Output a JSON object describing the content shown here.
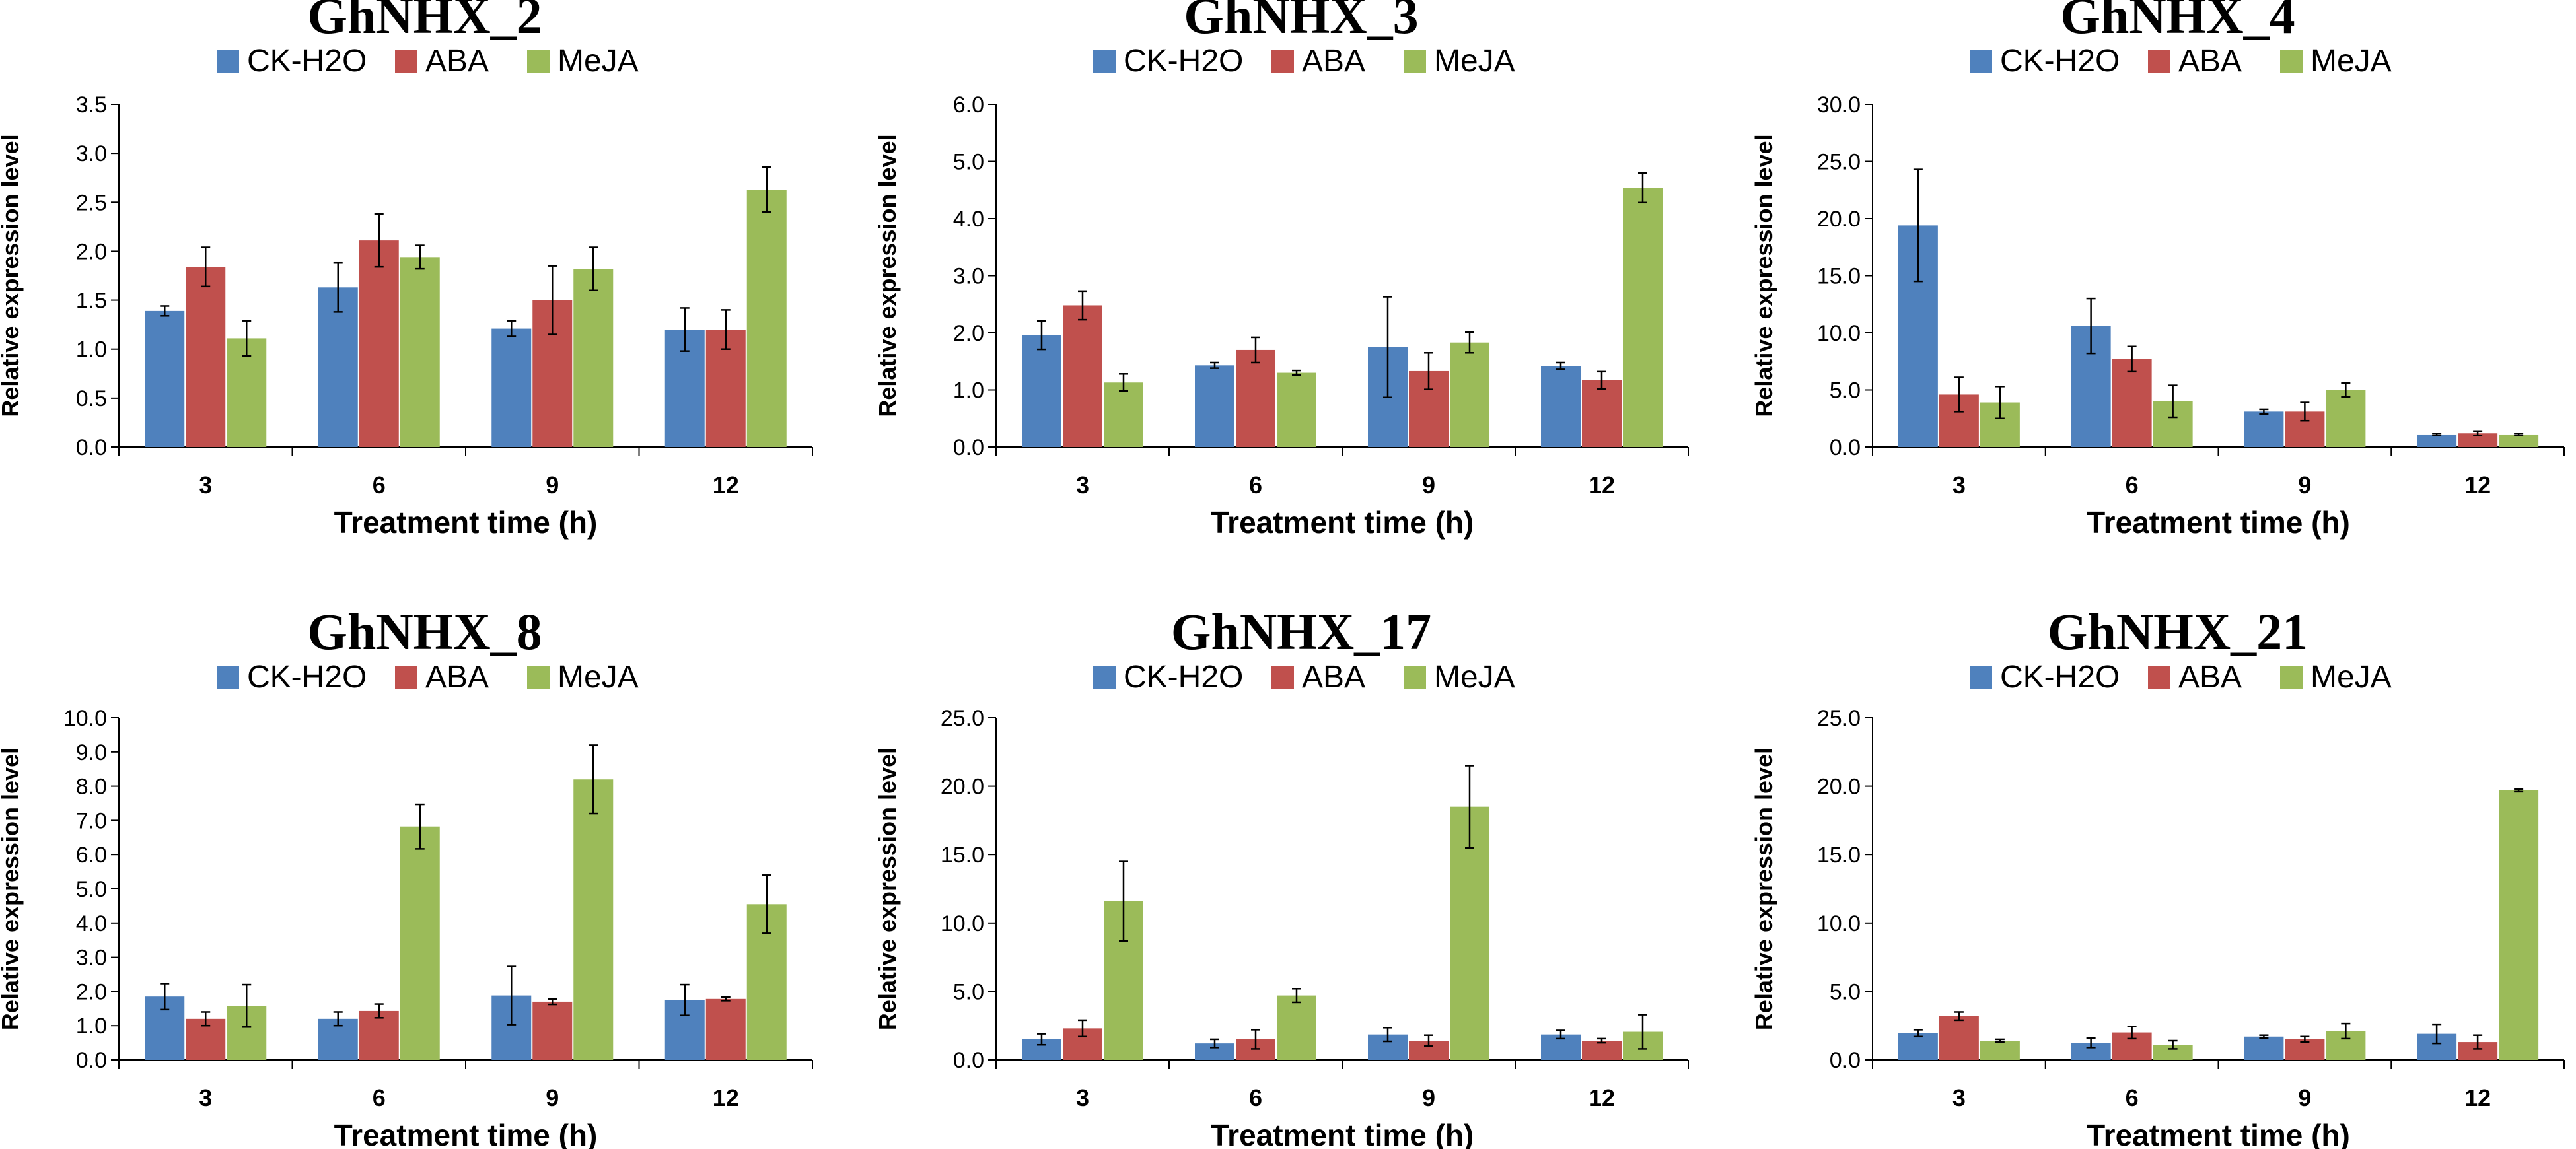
{
  "colors": {
    "CK-H2O": "#4f81bd",
    "ABA": "#c0504d",
    "MeJA": "#9bbb59"
  },
  "chart_data": [
    {
      "type": "bar",
      "title": "GhNHX_2",
      "xlabel": "Treatment time (h)",
      "ylabel": "Relative expression level",
      "categories": [
        "3",
        "6",
        "9",
        "12"
      ],
      "ylim": [
        0,
        3.5
      ],
      "ytick_step": 0.5,
      "yticks": [
        "0.0",
        "0.5",
        "1.0",
        "1.5",
        "2.0",
        "2.5",
        "3.0",
        "3.5"
      ],
      "legend": [
        "CK-H2O",
        "ABA",
        "MeJA"
      ],
      "series": [
        {
          "name": "CK-H2O",
          "values": [
            1.39,
            1.63,
            1.21,
            1.2
          ],
          "errors": [
            0.05,
            0.25,
            0.08,
            0.22
          ]
        },
        {
          "name": "ABA",
          "values": [
            1.84,
            2.11,
            1.5,
            1.2
          ],
          "errors": [
            0.2,
            0.27,
            0.35,
            0.2
          ]
        },
        {
          "name": "MeJA",
          "values": [
            1.11,
            1.94,
            1.82,
            2.63
          ],
          "errors": [
            0.18,
            0.12,
            0.22,
            0.23
          ]
        }
      ]
    },
    {
      "type": "bar",
      "title": "GhNHX_3",
      "xlabel": "Treatment time (h)",
      "ylabel": "Relative expression level",
      "categories": [
        "3",
        "6",
        "9",
        "12"
      ],
      "ylim": [
        0,
        6.0
      ],
      "ytick_step": 1.0,
      "yticks": [
        "0.0",
        "1.0",
        "2.0",
        "3.0",
        "4.0",
        "5.0",
        "6.0"
      ],
      "legend": [
        "CK-H2O",
        "ABA",
        "MeJA"
      ],
      "series": [
        {
          "name": "CK-H2O",
          "values": [
            1.96,
            1.43,
            1.75,
            1.42
          ],
          "errors": [
            0.25,
            0.05,
            0.88,
            0.06
          ]
        },
        {
          "name": "ABA",
          "values": [
            2.48,
            1.7,
            1.33,
            1.17
          ],
          "errors": [
            0.25,
            0.22,
            0.32,
            0.15
          ]
        },
        {
          "name": "MeJA",
          "values": [
            1.13,
            1.3,
            1.83,
            4.54
          ],
          "errors": [
            0.15,
            0.04,
            0.18,
            0.26
          ]
        }
      ]
    },
    {
      "type": "bar",
      "title": "GhNHX_4",
      "xlabel": "Treatment time (h)",
      "ylabel": "Relative expression level",
      "categories": [
        "3",
        "6",
        "9",
        "12"
      ],
      "ylim": [
        0,
        30.0
      ],
      "ytick_step": 5.0,
      "yticks": [
        "0.0",
        "5.0",
        "10.0",
        "15.0",
        "20.0",
        "25.0",
        "30.0"
      ],
      "legend": [
        "CK-H2O",
        "ABA",
        "MeJA"
      ],
      "series": [
        {
          "name": "CK-H2O",
          "values": [
            19.4,
            10.6,
            3.1,
            1.1
          ],
          "errors": [
            4.9,
            2.4,
            0.2,
            0.1
          ]
        },
        {
          "name": "ABA",
          "values": [
            4.6,
            7.7,
            3.1,
            1.2
          ],
          "errors": [
            1.5,
            1.1,
            0.8,
            0.2
          ]
        },
        {
          "name": "MeJA",
          "values": [
            3.9,
            4.0,
            5.0,
            1.1
          ],
          "errors": [
            1.4,
            1.4,
            0.6,
            0.1
          ]
        }
      ]
    },
    {
      "type": "bar",
      "title": "GhNHX_8",
      "xlabel": "Treatment time (h)",
      "ylabel": "Relative expression level",
      "categories": [
        "3",
        "6",
        "9",
        "12"
      ],
      "ylim": [
        0,
        10.0
      ],
      "ytick_step": 1.0,
      "yticks": [
        "0.0",
        "1.0",
        "2.0",
        "3.0",
        "4.0",
        "5.0",
        "6.0",
        "7.0",
        "8.0",
        "9.0",
        "10.0"
      ],
      "legend": [
        "CK-H2O",
        "ABA",
        "MeJA"
      ],
      "series": [
        {
          "name": "CK-H2O",
          "values": [
            1.85,
            1.2,
            1.88,
            1.75
          ],
          "errors": [
            0.38,
            0.2,
            0.85,
            0.45
          ]
        },
        {
          "name": "ABA",
          "values": [
            1.2,
            1.43,
            1.7,
            1.78
          ],
          "errors": [
            0.2,
            0.2,
            0.08,
            0.05
          ]
        },
        {
          "name": "MeJA",
          "values": [
            1.58,
            6.82,
            8.2,
            4.55
          ],
          "errors": [
            0.62,
            0.65,
            1.0,
            0.85
          ]
        }
      ]
    },
    {
      "type": "bar",
      "title": "GhNHX_17",
      "xlabel": "Treatment time (h)",
      "ylabel": "Relative expression level",
      "categories": [
        "3",
        "6",
        "9",
        "12"
      ],
      "ylim": [
        0,
        25.0
      ],
      "ytick_step": 5.0,
      "yticks": [
        "0.0",
        "5.0",
        "10.0",
        "15.0",
        "20.0",
        "25.0"
      ],
      "legend": [
        "CK-H2O",
        "ABA",
        "MeJA"
      ],
      "series": [
        {
          "name": "CK-H2O",
          "values": [
            1.5,
            1.2,
            1.85,
            1.85
          ],
          "errors": [
            0.4,
            0.3,
            0.5,
            0.3
          ]
        },
        {
          "name": "ABA",
          "values": [
            2.3,
            1.5,
            1.4,
            1.4
          ],
          "errors": [
            0.6,
            0.7,
            0.4,
            0.15
          ]
        },
        {
          "name": "MeJA",
          "values": [
            11.6,
            4.7,
            18.5,
            2.05
          ],
          "errors": [
            2.9,
            0.5,
            3.0,
            1.25
          ]
        }
      ]
    },
    {
      "type": "bar",
      "title": "GhNHX_21",
      "xlabel": "Treatment time (h)",
      "ylabel": "Relative expression level",
      "categories": [
        "3",
        "6",
        "9",
        "12"
      ],
      "ylim": [
        0,
        25.0
      ],
      "ytick_step": 5.0,
      "yticks": [
        "0.0",
        "5.0",
        "10.0",
        "15.0",
        "20.0",
        "25.0"
      ],
      "legend": [
        "CK-H2O",
        "ABA",
        "MeJA"
      ],
      "series": [
        {
          "name": "CK-H2O",
          "values": [
            1.95,
            1.25,
            1.7,
            1.9
          ],
          "errors": [
            0.25,
            0.35,
            0.1,
            0.7
          ]
        },
        {
          "name": "ABA",
          "values": [
            3.2,
            2.0,
            1.5,
            1.3
          ],
          "errors": [
            0.3,
            0.45,
            0.2,
            0.5
          ]
        },
        {
          "name": "MeJA",
          "values": [
            1.4,
            1.1,
            2.1,
            19.7
          ],
          "errors": [
            0.1,
            0.3,
            0.55,
            0.1
          ]
        }
      ]
    }
  ]
}
